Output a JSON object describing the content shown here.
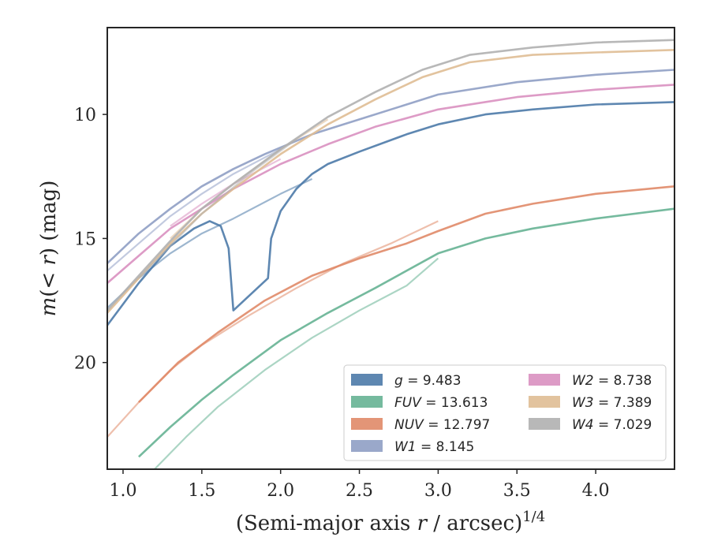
{
  "chart_data": {
    "type": "line",
    "xlabel": "(Semi-major axis r / arcsec)^1/4",
    "xlabel_parts": {
      "prefix": "(Semi-major axis ",
      "var": "r",
      "mid": " / arcsec)",
      "sup": "1/4"
    },
    "ylabel": "m(< r) (mag)",
    "ylabel_parts": {
      "m": "m",
      "open": "(",
      "lt": "< ",
      "r": "r",
      "close": ")",
      "unit": " (mag)"
    },
    "xlim": [
      0.9,
      4.5
    ],
    "ylim": [
      24.3,
      6.5
    ],
    "y_inverted": true,
    "xticks": [
      1.0,
      1.5,
      2.0,
      2.5,
      3.0,
      3.5,
      4.0
    ],
    "xtick_labels": [
      "1.0",
      "1.5",
      "2.0",
      "2.5",
      "3.0",
      "3.5",
      "4.0"
    ],
    "yticks": [
      10,
      15,
      20
    ],
    "ytick_labels": [
      "10",
      "15",
      "20"
    ],
    "grid": false,
    "legend_position": "bottom-right",
    "series": [
      {
        "name": "g = 9.483",
        "label_var": "g",
        "label_value": "= 9.483",
        "color": "#4c7aa8",
        "a": {
          "x": [
            0.9,
            1.1,
            1.3,
            1.45,
            1.55,
            1.62,
            1.67,
            1.7,
            1.92,
            1.94,
            2.0,
            2.1,
            2.2,
            2.3,
            2.5,
            2.8,
            3.0,
            3.3,
            3.6,
            4.0,
            4.5
          ],
          "y": [
            18.5,
            16.8,
            15.3,
            14.6,
            14.3,
            14.5,
            15.4,
            17.9,
            16.6,
            15.0,
            13.9,
            13.0,
            12.4,
            12.0,
            11.5,
            10.8,
            10.4,
            10.0,
            9.8,
            9.6,
            9.5
          ]
        },
        "b": {
          "x": [
            0.9,
            1.1,
            1.3,
            1.5,
            1.7,
            2.0,
            2.2
          ],
          "y": [
            17.8,
            16.6,
            15.6,
            14.8,
            14.2,
            13.2,
            12.6
          ]
        }
      },
      {
        "name": "FUV = 13.613",
        "label_var": "FUV",
        "label_value": "= 13.613",
        "color": "#66b394",
        "a": {
          "x": [
            1.1,
            1.3,
            1.5,
            1.7,
            2.0,
            2.3,
            2.6,
            3.0,
            3.3,
            3.6,
            4.0,
            4.5
          ],
          "y": [
            23.8,
            22.6,
            21.5,
            20.5,
            19.1,
            18.0,
            17.0,
            15.6,
            15.0,
            14.6,
            14.2,
            13.8
          ]
        },
        "b": {
          "x": [
            1.2,
            1.4,
            1.6,
            1.9,
            2.2,
            2.5,
            2.8,
            3.0
          ],
          "y": [
            24.3,
            23.0,
            21.8,
            20.3,
            19.0,
            17.9,
            16.9,
            15.8
          ]
        }
      },
      {
        "name": "NUV = 12.797",
        "label_var": "NUV",
        "label_value": "= 12.797",
        "color": "#e08a68",
        "a": {
          "x": [
            1.1,
            1.35,
            1.6,
            1.9,
            2.2,
            2.5,
            2.8,
            3.0,
            3.3,
            3.6,
            4.0,
            4.5
          ],
          "y": [
            21.6,
            20.0,
            18.8,
            17.5,
            16.5,
            15.8,
            15.2,
            14.7,
            14.0,
            13.6,
            13.2,
            12.9
          ]
        },
        "b": {
          "x": [
            0.9,
            1.1,
            1.3,
            1.5,
            1.8,
            2.1,
            2.4,
            2.7,
            3.0
          ],
          "y": [
            23.0,
            21.6,
            20.3,
            19.3,
            18.1,
            17.0,
            16.0,
            15.2,
            14.3
          ]
        }
      },
      {
        "name": "W1 = 8.145",
        "label_var": "W1",
        "label_value": "= 8.145",
        "color": "#8f9fc4",
        "a": {
          "x": [
            0.9,
            1.1,
            1.3,
            1.5,
            1.7,
            1.9,
            2.2,
            2.5,
            2.8,
            3.0,
            3.5,
            4.0,
            4.5
          ],
          "y": [
            16.0,
            14.8,
            13.8,
            12.9,
            12.2,
            11.6,
            10.8,
            10.2,
            9.6,
            9.2,
            8.7,
            8.4,
            8.2
          ]
        },
        "b": {
          "x": [
            0.9,
            1.1,
            1.3,
            1.5,
            1.7,
            2.0
          ],
          "y": [
            16.3,
            15.2,
            14.1,
            13.2,
            12.4,
            11.4
          ]
        }
      },
      {
        "name": "W2 = 8.738",
        "label_var": "W2",
        "label_value": "= 8.738",
        "color": "#d990c0",
        "a": {
          "x": [
            0.9,
            1.1,
            1.3,
            1.5,
            1.7,
            2.0,
            2.3,
            2.6,
            3.0,
            3.5,
            4.0,
            4.5
          ],
          "y": [
            16.8,
            15.7,
            14.6,
            13.8,
            13.0,
            12.0,
            11.2,
            10.5,
            9.8,
            9.3,
            9.0,
            8.8
          ]
        },
        "b": {
          "x": [
            1.3,
            1.5,
            1.7,
            2.0
          ],
          "y": [
            14.5,
            13.6,
            12.8,
            11.8
          ]
        }
      },
      {
        "name": "W3 = 7.389",
        "label_var": "W3",
        "label_value": "= 7.389",
        "color": "#dfbc94",
        "a": {
          "x": [
            0.9,
            1.1,
            1.3,
            1.5,
            1.7,
            2.0,
            2.3,
            2.6,
            2.9,
            3.2,
            3.6,
            4.0,
            4.5
          ],
          "y": [
            18.0,
            16.6,
            15.2,
            14.0,
            13.0,
            11.6,
            10.4,
            9.4,
            8.5,
            7.9,
            7.6,
            7.5,
            7.4
          ]
        },
        "b": {
          "x": [
            1.3,
            1.5,
            1.7,
            2.0,
            2.3
          ],
          "y": [
            15.0,
            13.8,
            12.8,
            11.4,
            10.2
          ]
        }
      },
      {
        "name": "W4 = 7.029",
        "label_var": "W4",
        "label_value": "= 7.029",
        "color": "#b0b0b0",
        "a": {
          "x": [
            0.9,
            1.1,
            1.3,
            1.5,
            1.7,
            2.0,
            2.3,
            2.6,
            2.9,
            3.2,
            3.6,
            4.0,
            4.5
          ],
          "y": [
            17.9,
            16.5,
            15.1,
            13.8,
            12.8,
            11.4,
            10.1,
            9.1,
            8.2,
            7.6,
            7.3,
            7.1,
            7.0
          ]
        },
        "b": {
          "x": [
            1.1,
            1.3,
            1.5,
            1.8,
            2.1
          ],
          "y": [
            16.6,
            15.3,
            14.0,
            12.4,
            11.0
          ]
        }
      }
    ]
  }
}
